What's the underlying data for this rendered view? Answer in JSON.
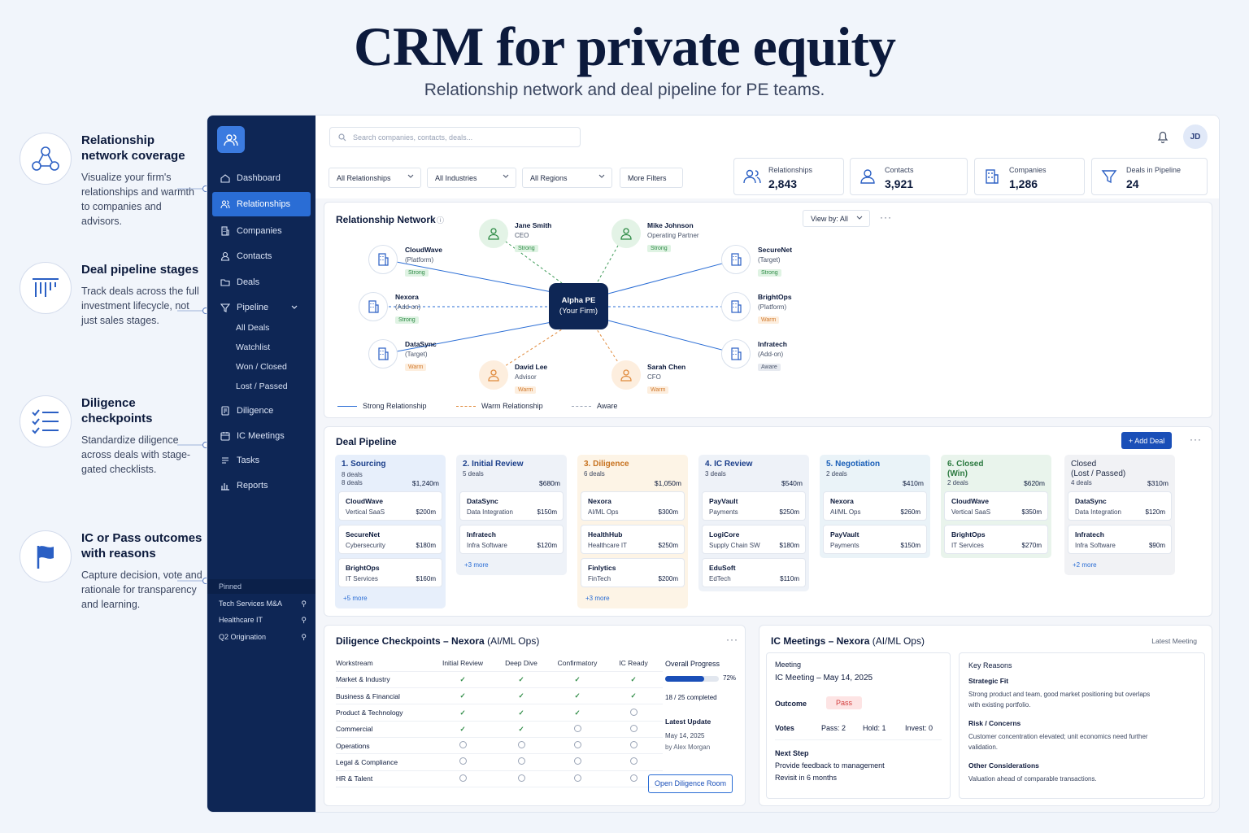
{
  "hero": {
    "title": "CRM for private equity",
    "subtitle": "Relationship network and deal pipeline for PE teams."
  },
  "features": [
    {
      "title": "Relationship network coverage",
      "desc": "Visualize your firm's relationships and warmth to companies and advisors.",
      "icon": "network-icon"
    },
    {
      "title": "Deal pipeline stages",
      "desc": "Track deals across the full investment lifecycle, not just sales stages.",
      "icon": "pipeline-icon"
    },
    {
      "title": "Diligence checkpoints",
      "desc": "Standardize diligence across deals with stage-gated checklists.",
      "icon": "checklist-icon"
    },
    {
      "title": "IC or Pass outcomes with reasons",
      "desc": "Capture decision, vote and rationale for transparency and learning.",
      "icon": "flag-icon"
    }
  ],
  "sidebar": {
    "items": [
      {
        "label": "Dashboard",
        "icon": "home-icon"
      },
      {
        "label": "Relationships",
        "icon": "people-icon"
      },
      {
        "label": "Companies",
        "icon": "building-icon"
      },
      {
        "label": "Contacts",
        "icon": "person-icon"
      },
      {
        "label": "Deals",
        "icon": "folder-icon"
      },
      {
        "label": "Pipeline",
        "icon": "funnel-icon"
      }
    ],
    "pipeline_sub": [
      "All Deals",
      "Watchlist",
      "Won / Closed",
      "Lost / Passed"
    ],
    "items2": [
      {
        "label": "Diligence",
        "icon": "doc-icon"
      },
      {
        "label": "IC Meetings",
        "icon": "calendar-icon"
      },
      {
        "label": "Tasks",
        "icon": "tasks-icon"
      },
      {
        "label": "Reports",
        "icon": "chart-icon"
      }
    ],
    "pinned_label": "Pinned",
    "pinned": [
      "Tech Services M&A",
      "Healthcare IT",
      "Q2 Origination"
    ]
  },
  "topbar": {
    "search_placeholder": "Search companies, contacts, deals...",
    "avatar": "JD",
    "filters": [
      "All Relationships",
      "All Industries",
      "All Regions",
      "More Filters"
    ],
    "stats": [
      {
        "label": "Relationships",
        "value": "2,843"
      },
      {
        "label": "Contacts",
        "value": "3,921"
      },
      {
        "label": "Companies",
        "value": "1,286"
      },
      {
        "label": "Deals in Pipeline",
        "value": "24"
      }
    ]
  },
  "network": {
    "title": "Relationship Network",
    "view_by": "View by: All",
    "hub": {
      "name": "Alpha PE",
      "sub": "(Your Firm)"
    },
    "companies": [
      {
        "name": "CloudWave",
        "role": "(Platform)",
        "tag": "Strong"
      },
      {
        "name": "Nexora",
        "role": "(Add-on)",
        "tag": "Strong"
      },
      {
        "name": "DataSync",
        "role": "(Target)",
        "tag": "Warm"
      },
      {
        "name": "SecureNet",
        "role": "(Target)",
        "tag": "Strong"
      },
      {
        "name": "BrightOps",
        "role": "(Platform)",
        "tag": "Warm"
      },
      {
        "name": "Infratech",
        "role": "(Add-on)",
        "tag": "Aware"
      }
    ],
    "people": [
      {
        "name": "Jane Smith",
        "role": "CEO",
        "tag": "Strong"
      },
      {
        "name": "Mike Johnson",
        "role": "Operating Partner",
        "tag": "Strong"
      },
      {
        "name": "David Lee",
        "role": "Advisor",
        "tag": "Warm"
      },
      {
        "name": "Sarah Chen",
        "role": "CFO",
        "tag": "Warm"
      }
    ],
    "legend": [
      "Strong Relationship",
      "Warm Relationship",
      "Aware"
    ],
    "colors": {
      "strong": "#2a6dd5",
      "warm": "#e08a3c",
      "aware": "#9aa4b6"
    }
  },
  "pipeline": {
    "title": "Deal Pipeline",
    "add_label": "+ Add Deal",
    "stages": [
      {
        "title": "1. Sourcing",
        "deals": "8 deals",
        "deals2": "8 deals",
        "amount": "$1,240m",
        "cards": [
          [
            "CloudWave",
            "Vertical SaaS",
            "$200m"
          ],
          [
            "SecureNet",
            "Cybersecurity",
            "$180m"
          ],
          [
            "BrightOps",
            "IT Services",
            "$160m"
          ]
        ],
        "more": "+5 more"
      },
      {
        "title": "2. Initial Review",
        "deals": "5 deals",
        "amount": "$680m",
        "cards": [
          [
            "DataSync",
            "Data Integration",
            "$150m"
          ],
          [
            "Infratech",
            "Infra Software",
            "$120m"
          ]
        ],
        "more": "+3 more"
      },
      {
        "title": "3. Diligence",
        "deals": "6 deals",
        "amount": "$1,050m",
        "cards": [
          [
            "Nexora",
            "AI/ML Ops",
            "$300m"
          ],
          [
            "HealthHub",
            "Healthcare IT",
            "$250m"
          ],
          [
            "Finlytics",
            "FinTech",
            "$200m"
          ]
        ],
        "more": "+3 more"
      },
      {
        "title": "4. IC Review",
        "deals": "3 deals",
        "amount": "$540m",
        "cards": [
          [
            "PayVault",
            "Payments",
            "$250m"
          ],
          [
            "LogiCore",
            "Supply Chain SW",
            "$180m"
          ],
          [
            "EduSoft",
            "EdTech",
            "$110m"
          ]
        ],
        "more": ""
      },
      {
        "title": "5. Negotiation",
        "deals": "2 deals",
        "amount": "$410m",
        "cards": [
          [
            "Nexora",
            "AI/ML Ops",
            "$260m"
          ],
          [
            "PayVault",
            "Payments",
            "$150m"
          ]
        ],
        "more": ""
      },
      {
        "title": "6. Closed",
        "title2": "(Win)",
        "deals": "2 deals",
        "amount": "$620m",
        "cards": [
          [
            "CloudWave",
            "Vertical SaaS",
            "$350m"
          ],
          [
            "BrightOps",
            "IT Services",
            "$270m"
          ]
        ],
        "more": ""
      },
      {
        "title": "Closed",
        "title2": "(Lost / Passed)",
        "deals": "4 deals",
        "amount": "$310m",
        "cards": [
          [
            "DataSync",
            "Data Integration",
            "$120m"
          ],
          [
            "Infratech",
            "Infra Software",
            "$90m"
          ]
        ],
        "more": "+2 more"
      }
    ]
  },
  "diligence": {
    "title": "Diligence Checkpoints – Nexora",
    "title_suffix": "(AI/ML Ops)",
    "columns": [
      "Workstream",
      "Initial Review",
      "Deep Dive",
      "Confirmatory",
      "IC Ready"
    ],
    "rows": [
      {
        "name": "Market & Industry",
        "checks": [
          1,
          1,
          1,
          1
        ]
      },
      {
        "name": "Business & Financial",
        "checks": [
          1,
          1,
          1,
          1
        ]
      },
      {
        "name": "Product & Technology",
        "checks": [
          1,
          1,
          1,
          0
        ]
      },
      {
        "name": "Commercial",
        "checks": [
          1,
          1,
          0,
          0
        ]
      },
      {
        "name": "Operations",
        "checks": [
          0,
          0,
          0,
          0
        ]
      },
      {
        "name": "Legal & Compliance",
        "checks": [
          0,
          0,
          0,
          0
        ]
      },
      {
        "name": "HR & Talent",
        "checks": [
          0,
          0,
          0,
          0
        ]
      }
    ],
    "progress_label": "Overall Progress",
    "progress_pct": "72%",
    "progress_value": 0.72,
    "completed": "18 / 25 completed",
    "update_label": "Latest Update",
    "update_date": "May 14, 2025",
    "update_by": "by Alex Morgan",
    "open_btn": "Open Diligence Room"
  },
  "ic": {
    "title": "IC Meetings – Nexora",
    "title_suffix": "(AI/ML Ops)",
    "latest": "Latest Meeting",
    "meeting_label": "Meeting",
    "meeting_value": "IC Meeting – May 14, 2025",
    "outcome_label": "Outcome",
    "outcome_value": "Pass",
    "votes_label": "Votes",
    "votes": [
      "Pass: 2",
      "Hold: 1",
      "Invest: 0"
    ],
    "next_label": "Next Step",
    "next_1": "Provide feedback to management",
    "next_2": "Revisit in 6 months",
    "reasons_title": "Key Reasons",
    "reasons": [
      {
        "h": "Strategic Fit",
        "t": "Strong product and team, good market positioning but overlaps with existing portfolio."
      },
      {
        "h": "Risk / Concerns",
        "t": "Customer concentration elevated; unit economics need further validation."
      },
      {
        "h": "Other Considerations",
        "t": "Valuation ahead of comparable transactions."
      }
    ]
  }
}
